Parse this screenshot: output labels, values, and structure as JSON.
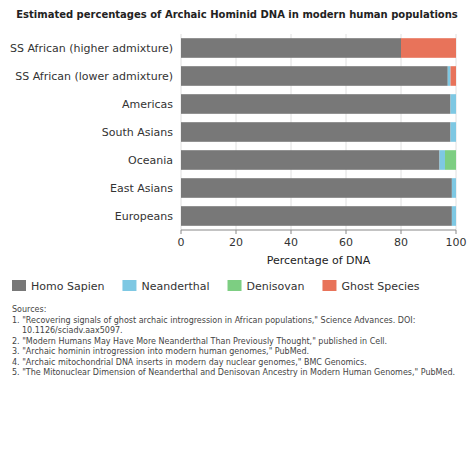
{
  "chart_data": {
    "type": "bar",
    "orientation": "horizontal",
    "stacked": true,
    "title": "Estimated percentages of Archaic Hominid DNA in modern human populations",
    "categories": [
      "SS African (higher admixture)",
      "SS African (lower admixture)",
      "Americas",
      "South Asians",
      "Oceania",
      "East Asians",
      "Europeans"
    ],
    "series": [
      {
        "name": "Homo Sapien",
        "color": "#787878",
        "values": [
          80.0,
          97.0,
          98.0,
          98.0,
          94.0,
          98.5,
          98.5
        ]
      },
      {
        "name": "Neanderthal",
        "color": "#7ec8e3",
        "values": [
          0.0,
          1.0,
          2.0,
          2.0,
          2.0,
          1.5,
          1.5
        ]
      },
      {
        "name": "Denisovan",
        "color": "#7dce82",
        "values": [
          0.0,
          0.0,
          0.0,
          0.0,
          4.0,
          0.0,
          0.0
        ]
      },
      {
        "name": "Ghost Species",
        "color": "#e8735a",
        "values": [
          20.0,
          2.0,
          0.0,
          0.0,
          0.0,
          0.0,
          0.0
        ]
      }
    ],
    "x_label": "Percentage of DNA",
    "xlim": [
      0,
      100
    ],
    "xticks": [
      0,
      20,
      40,
      60,
      80,
      100
    ],
    "grid": true,
    "legend": "lower left",
    "annotations": [
      "Sources:",
      "1. \"Recovering signals of ghost archaic introgression in African populations,\" Science Advances. DOI: 10.1126/sciadv.aax5097.",
      "2. \"Modern Humans May Have More Neanderthal Than Previously Thought,\" published in Cell.",
      "3. \"Archaic hominin introgression into modern human genomes,\" PubMed.",
      "4. \"Archaic mitochondrial DNA inserts in modern day nuclear genomes,\" BMC Genomics.",
      "5. \"The Mitonuclear Dimension of Neanderthal and Denisovan Ancestry in Modern Human Genomes,\" PubMed."
    ]
  }
}
